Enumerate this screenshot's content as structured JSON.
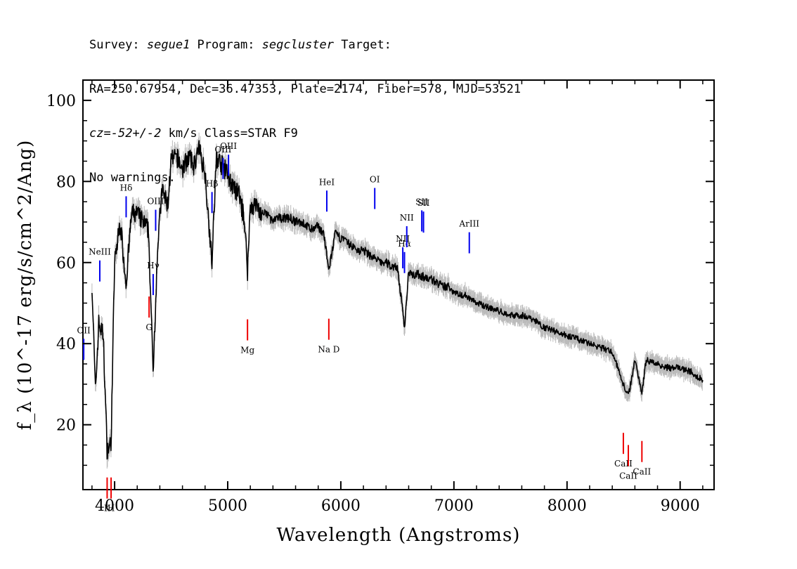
{
  "header": {
    "line1": {
      "p1": "Survey: ",
      "survey": "segue1",
      "p2": " Program: ",
      "program": "segcluster",
      "p3": " Target:"
    },
    "line2": "RA=250.67954, Dec=36.47353, Plate=2174, Fiber=578, MJD=53521",
    "line3": {
      "cz": "cz",
      "p1": "=",
      "vel": "-52+/-2",
      "p2": " km/s Class=STAR F9"
    },
    "line4": "No warnings."
  },
  "chart_data": {
    "type": "line",
    "title": "",
    "xlabel": "Wavelength (Angstroms)",
    "ylabel": "f_λ (10^-17 erg/s/cm^2/Ang)",
    "xlim": [
      3720,
      9300
    ],
    "ylim": [
      4,
      105
    ],
    "x_ticks": [
      4000,
      5000,
      6000,
      7000,
      8000,
      9000
    ],
    "y_ticks": [
      20,
      40,
      60,
      80,
      100
    ],
    "grid": false,
    "colors": {
      "spectrum": "#000000",
      "error": "#bbbbbb",
      "emission": "#0000ee",
      "absorption": "#ee0000"
    },
    "series": [
      {
        "x": [
          3800,
          3830,
          3860,
          3900,
          3933,
          3968,
          4000,
          4050,
          4101,
          4150,
          4200,
          4250,
          4300,
          4340,
          4380,
          4420,
          4470,
          4500,
          4550,
          4600,
          4650,
          4700,
          4750,
          4800,
          4861,
          4900,
          4950,
          5000,
          5050,
          5100,
          5150,
          5175,
          5200,
          5250,
          5300,
          5350,
          5400,
          5450,
          5500,
          5550,
          5600,
          5650,
          5700,
          5750,
          5800,
          5850,
          5893,
          5950,
          6000,
          6050,
          6100,
          6150,
          6200,
          6250,
          6300,
          6350,
          6400,
          6450,
          6500,
          6563,
          6600,
          6650,
          6700,
          6750,
          6800,
          6850,
          6900,
          6950,
          7000,
          7050,
          7100,
          7150,
          7200,
          7300,
          7400,
          7500,
          7600,
          7700,
          7800,
          7900,
          8000,
          8100,
          8200,
          8300,
          8400,
          8498,
          8542,
          8600,
          8662,
          8700,
          8800,
          8900,
          9000,
          9100,
          9200
        ],
        "y": [
          55,
          28,
          45,
          42,
          14,
          15,
          60,
          70,
          55,
          72,
          72,
          70,
          68,
          33,
          64,
          78,
          74,
          85,
          86,
          83,
          86,
          84,
          88,
          82,
          60,
          86,
          84,
          82,
          78,
          77,
          70,
          58,
          74,
          74,
          72,
          72,
          70,
          71,
          71,
          71,
          70,
          70,
          69,
          68,
          69,
          67,
          58,
          67,
          66,
          65,
          64,
          63,
          63,
          62,
          61,
          60,
          60,
          59,
          59,
          44,
          58,
          57,
          57,
          56,
          56,
          55,
          54,
          54,
          53,
          52,
          52,
          51,
          50,
          49,
          48,
          47,
          47,
          46,
          44,
          43,
          42,
          41,
          40,
          39,
          38,
          30,
          27,
          36,
          28,
          36,
          35,
          34,
          34,
          33,
          31
        ]
      }
    ],
    "emission_lines": [
      {
        "label": "OII",
        "wavelength": 3727
      },
      {
        "label": "NeIII",
        "wavelength": 3869
      },
      {
        "label": "Hδ",
        "wavelength": 4102
      },
      {
        "label": "Hγ",
        "wavelength": 4341
      },
      {
        "label": "OIII",
        "wavelength": 4363
      },
      {
        "label": "Hβ",
        "wavelength": 4861
      },
      {
        "label": "OIII",
        "wavelength": 4959
      },
      {
        "label": "OIII",
        "wavelength": 5007
      },
      {
        "label": "HeI",
        "wavelength": 5876
      },
      {
        "label": "OI",
        "wavelength": 6300
      },
      {
        "label": "NII",
        "wavelength": 6548
      },
      {
        "label": "Hα",
        "wavelength": 6563
      },
      {
        "label": "NII",
        "wavelength": 6583
      },
      {
        "label": "SII",
        "wavelength": 6716
      },
      {
        "label": "SII",
        "wavelength": 6731
      },
      {
        "label": "ArIII",
        "wavelength": 7136
      }
    ],
    "absorption_lines": [
      {
        "label": "K",
        "wavelength": 3934
      },
      {
        "label": "H",
        "wavelength": 3969
      },
      {
        "label": "G",
        "wavelength": 4305
      },
      {
        "label": "Mg",
        "wavelength": 5175
      },
      {
        "label": "Na D",
        "wavelength": 5894
      },
      {
        "label": "CaII",
        "wavelength": 8498
      },
      {
        "label": "CaII",
        "wavelength": 8542
      },
      {
        "label": "CaII",
        "wavelength": 8662
      }
    ]
  }
}
